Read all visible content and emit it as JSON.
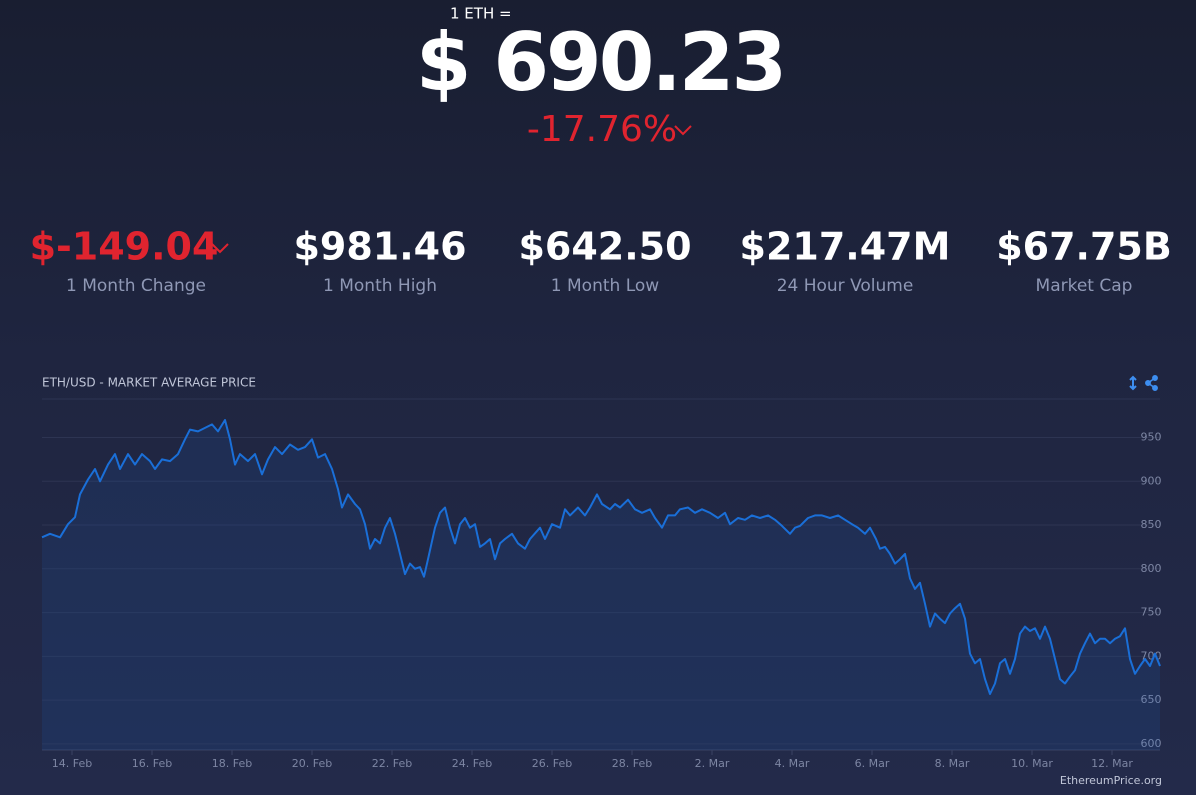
{
  "header": {
    "unit": "1 ETH =",
    "price": "$ 690.23",
    "change": "-17.76%"
  },
  "stats": [
    {
      "value": "$-149.04",
      "label": "1 Month Change"
    },
    {
      "value": "$981.46",
      "label": "1 Month High"
    },
    {
      "value": "$642.50",
      "label": "1 Month Low"
    },
    {
      "value": "$217.47M",
      "label": "24 Hour Volume"
    },
    {
      "value": "$67.75B",
      "label": "Market Cap"
    }
  ],
  "credit": "EthereumPrice.org",
  "chart_data": {
    "type": "line",
    "title": "ETH/USD - MARKET AVERAGE PRICE",
    "color": "#1a6fd8",
    "grid": true,
    "x": [
      -0.75,
      -0.55,
      -0.3,
      -0.1,
      0.075,
      0.2,
      0.4,
      0.575,
      0.7,
      0.9,
      1.075,
      1.2,
      1.4,
      1.575,
      1.75,
      1.95,
      2.075,
      2.25,
      2.45,
      2.65,
      2.825,
      2.95,
      3.15,
      3.325,
      3.5,
      3.65,
      3.825,
      3.95,
      4.075,
      4.2,
      4.4,
      4.575,
      4.75,
      4.9,
      5.075,
      5.25,
      5.45,
      5.65,
      5.825,
      6,
      6.15,
      6.325,
      6.5,
      6.65,
      6.75,
      6.9,
      7.075,
      7.2,
      7.325,
      7.45,
      7.575,
      7.7,
      7.825,
      7.95,
      8.075,
      8.2,
      8.325,
      8.45,
      8.575,
      8.7,
      8.8,
      8.9,
      9.075,
      9.2,
      9.325,
      9.45,
      9.575,
      9.7,
      9.825,
      9.95,
      10.075,
      10.2,
      10.325,
      10.45,
      10.575,
      10.7,
      10.825,
      11,
      11.15,
      11.325,
      11.45,
      11.7,
      11.825,
      12,
      12.2,
      12.325,
      12.45,
      12.65,
      12.825,
      12.95,
      13.125,
      13.25,
      13.45,
      13.575,
      13.7,
      13.9,
      14.075,
      14.25,
      14.45,
      14.575,
      14.75,
      14.9,
      15.075,
      15.2,
      15.4,
      15.575,
      15.75,
      15.95,
      16.15,
      16.325,
      16.45,
      16.65,
      16.825,
      17,
      17.2,
      17.4,
      17.575,
      17.75,
      17.95,
      18.075,
      18.2,
      18.4,
      18.575,
      18.75,
      18.95,
      19.15,
      19.325,
      19.5,
      19.65,
      19.825,
      19.95,
      20.1,
      20.2,
      20.325,
      20.45,
      20.575,
      20.7,
      20.825,
      20.95,
      21.075,
      21.2,
      21.325,
      21.45,
      21.575,
      21.7,
      21.825,
      21.95,
      22.075,
      22.2,
      22.325,
      22.45,
      22.575,
      22.7,
      22.825,
      22.95,
      23.075,
      23.2,
      23.325,
      23.45,
      23.575,
      23.7,
      23.825,
      23.95,
      24.075,
      24.2,
      24.325,
      24.45,
      24.575,
      24.7,
      24.825,
      24.95,
      25.075,
      25.2,
      25.325,
      25.45,
      25.575,
      25.7,
      25.825,
      25.95,
      26.075,
      26.2,
      26.325,
      26.45,
      26.575,
      26.7,
      26.825,
      26.95,
      27.075,
      27.2
    ],
    "values": [
      836,
      840,
      836,
      851,
      859,
      885,
      902,
      914,
      900,
      919,
      931,
      914,
      931,
      919,
      931,
      923,
      914,
      925,
      923,
      931,
      948,
      959,
      957,
      961,
      965,
      957,
      970,
      948,
      919,
      931,
      923,
      931,
      908,
      925,
      939,
      931,
      942,
      936,
      939,
      948,
      927,
      931,
      914,
      891,
      870,
      885,
      874,
      868,
      851,
      823,
      834,
      829,
      847,
      858,
      840,
      817,
      794,
      806,
      800,
      802,
      791,
      811,
      847,
      864,
      870,
      847,
      829,
      851,
      858,
      847,
      851,
      825,
      829,
      834,
      811,
      829,
      834,
      840,
      829,
      823,
      834,
      847,
      834,
      851,
      847,
      868,
      861,
      870,
      861,
      870,
      885,
      874,
      868,
      874,
      870,
      879,
      868,
      864,
      868,
      858,
      847,
      861,
      861,
      868,
      870,
      864,
      868,
      864,
      858,
      864,
      851,
      858,
      856,
      861,
      858,
      861,
      856,
      849,
      840,
      847,
      849,
      858,
      861,
      861,
      858,
      861,
      856,
      851,
      847,
      840,
      847,
      834,
      823,
      825,
      817,
      806,
      811,
      817,
      789,
      777,
      784,
      760,
      734,
      749,
      743,
      738,
      749,
      755,
      760,
      743,
      703,
      692,
      697,
      674,
      657,
      669,
      692,
      697,
      680,
      697,
      726,
      734,
      729,
      732,
      720,
      734,
      720,
      697,
      674,
      669,
      677,
      684,
      703,
      715,
      726,
      715,
      720,
      720,
      715,
      720,
      723,
      732,
      697,
      680,
      689,
      697,
      689,
      703,
      689
    ],
    "xlim": [
      -0.75,
      27.2
    ],
    "xticks": [
      {
        "value": 0,
        "label": "14. Feb"
      },
      {
        "value": 2,
        "label": "16. Feb"
      },
      {
        "value": 4,
        "label": "18. Feb"
      },
      {
        "value": 6,
        "label": "20. Feb"
      },
      {
        "value": 8,
        "label": "22. Feb"
      },
      {
        "value": 10,
        "label": "24. Feb"
      },
      {
        "value": 12,
        "label": "26. Feb"
      },
      {
        "value": 14,
        "label": "28. Feb"
      },
      {
        "value": 16,
        "label": "2. Mar"
      },
      {
        "value": 18,
        "label": "4. Mar"
      },
      {
        "value": 20,
        "label": "6. Mar"
      },
      {
        "value": 22,
        "label": "8. Mar"
      },
      {
        "value": 24,
        "label": "10. Mar"
      },
      {
        "value": 26,
        "label": "12. Mar"
      }
    ],
    "ylim": [
      593,
      994
    ],
    "yticks": [
      600,
      650,
      700,
      750,
      800,
      850,
      900,
      950
    ]
  }
}
